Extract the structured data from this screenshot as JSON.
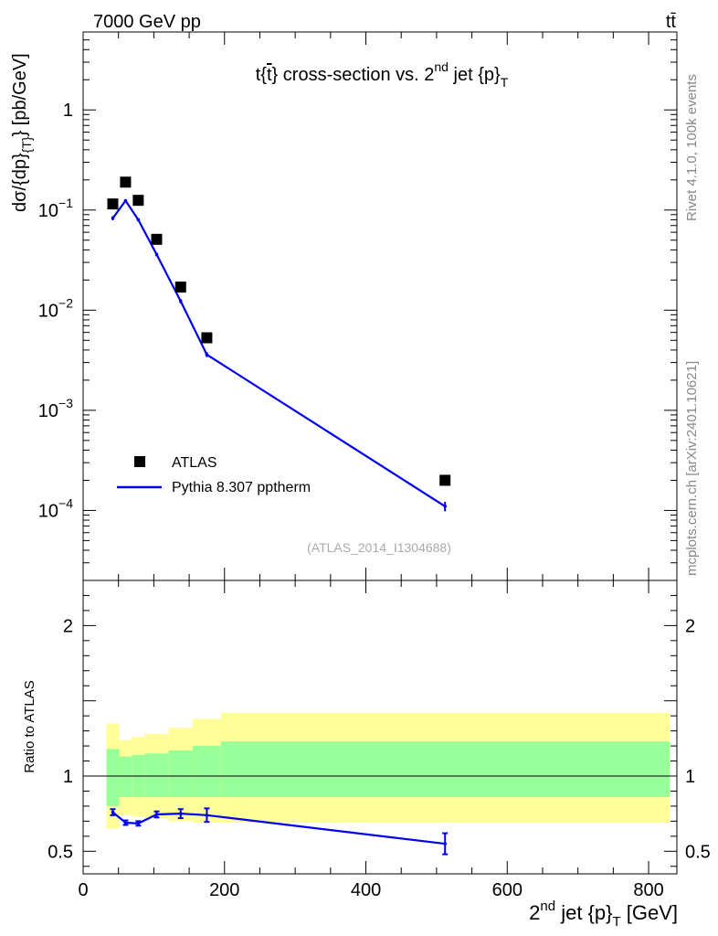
{
  "header": {
    "left": "7000 GeV pp",
    "right": "tt̄"
  },
  "side_labels": {
    "rivet": "Rivet 4.1.0,  100k events",
    "mcplots": "mcplots.cern.ch [arXiv:2401.10621]"
  },
  "chart_data": [
    {
      "panel": "main",
      "type": "scatter",
      "title": "t{t̄} cross-section vs. 2nd jet {p}T",
      "title_parts": {
        "a": "t{",
        "b": "t",
        "c": "} cross-section vs. 2",
        "sup": "nd",
        "d": " jet {p}",
        "sub": "T"
      },
      "ylabel": "dσ/{dp}{T} [pb/GeV]",
      "ylabel_parts": {
        "a": "dσ/{dp}",
        "sub": "{T}",
        "b": "} [pb/GeV]"
      },
      "yscale": "log",
      "xlim": [
        0,
        840
      ],
      "ylim": [
        2e-05,
        6
      ],
      "yticks": [
        {
          "value": 1,
          "label": "1",
          "exp": ""
        },
        {
          "value": 0.1,
          "label": "10",
          "exp": "−1"
        },
        {
          "value": 0.01,
          "label": "10",
          "exp": "−2"
        },
        {
          "value": 0.001,
          "label": "10",
          "exp": "−3"
        },
        {
          "value": 0.0001,
          "label": "10",
          "exp": "−4"
        }
      ],
      "watermark": "(ATLAS_2014_I1304688)",
      "legend": [
        {
          "label": "ATLAS",
          "marker": "square",
          "color": "#000000"
        },
        {
          "label": "Pythia 8.307 pptherm",
          "marker": "line",
          "color": "#0000ee"
        }
      ],
      "series": [
        {
          "name": "ATLAS",
          "x": [
            42,
            60,
            78,
            104,
            138,
            175,
            512
          ],
          "y": [
            0.115,
            0.19,
            0.125,
            0.051,
            0.017,
            0.0053,
            0.0002
          ]
        },
        {
          "name": "Pythia 8.307 pptherm",
          "x": [
            42,
            60,
            78,
            104,
            138,
            175,
            512
          ],
          "y": [
            0.083,
            0.124,
            0.08,
            0.036,
            0.0123,
            0.0036,
            0.00011
          ],
          "err": [
            0.004,
            0.004,
            0.003,
            0.0015,
            0.0006,
            0.0002,
            1.2e-05
          ]
        }
      ]
    },
    {
      "panel": "ratio",
      "type": "line",
      "ylabel": "Ratio to ATLAS",
      "xlabel": "2nd jet {p}T [GeV]",
      "xlabel_parts": {
        "a": "2",
        "sup": "nd",
        "b": " jet {p}",
        "sub": "T",
        "c": " [GeV]"
      },
      "xlim": [
        0,
        840
      ],
      "ylim": [
        0.35,
        2.3
      ],
      "xticks": [
        0,
        200,
        400,
        600,
        800
      ],
      "yticks": [
        0.5,
        1,
        2
      ],
      "bins": [
        33,
        51,
        69,
        87,
        121,
        155,
        195,
        830
      ],
      "band_inner": {
        "lo": [
          0.8,
          0.86,
          0.86,
          0.86,
          0.86,
          0.86,
          0.86
        ],
        "hi": [
          1.18,
          1.13,
          1.14,
          1.15,
          1.17,
          1.2,
          1.23
        ]
      },
      "band_outer": {
        "lo": [
          0.65,
          0.74,
          0.73,
          0.72,
          0.7,
          0.69,
          0.69
        ],
        "hi": [
          1.35,
          1.24,
          1.26,
          1.28,
          1.32,
          1.38,
          1.42
        ]
      },
      "band_colors": {
        "inner": "#99ff99",
        "outer": "#ffff99"
      },
      "series": [
        {
          "name": "Pythia 8.307 pptherm",
          "x": [
            42,
            60,
            78,
            104,
            138,
            175,
            512
          ],
          "y": [
            0.76,
            0.69,
            0.685,
            0.745,
            0.75,
            0.74,
            0.55
          ],
          "err": [
            0.02,
            0.015,
            0.015,
            0.02,
            0.03,
            0.045,
            0.07
          ]
        }
      ]
    }
  ]
}
